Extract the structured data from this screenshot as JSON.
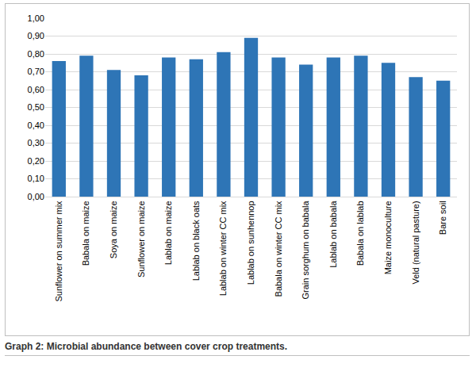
{
  "chart_data": {
    "type": "bar",
    "title": "Graph 2: Microbial abundance between cover crop treatments.",
    "categories": [
      "Sunflower on summer mix",
      "Babala on maize",
      "Soya on maize",
      "Sunflower on maize",
      "Lablab on maize",
      "Lablab on black oats",
      "Lablab on winter CC mix",
      "Lablab on sunhennop",
      "Babala on winter CC mix",
      "Grain sorghum on babala",
      "Lablab on babala",
      "Babala on lablab",
      "Maize monoculture",
      "Veld (natural pasture)",
      "Bare soil"
    ],
    "values": [
      0.76,
      0.79,
      0.71,
      0.68,
      0.78,
      0.77,
      0.81,
      0.89,
      0.78,
      0.74,
      0.78,
      0.79,
      0.75,
      0.67,
      0.65
    ],
    "color": "#2e75b6",
    "ylim": [
      0,
      1
    ],
    "yticks": [
      {
        "value": 0,
        "label": "0,00"
      },
      {
        "value": 0.1,
        "label": "0,10"
      },
      {
        "value": 0.2,
        "label": "0,20"
      },
      {
        "value": 0.3,
        "label": "0,30"
      },
      {
        "value": 0.4,
        "label": "0,40"
      },
      {
        "value": 0.5,
        "label": "0,50"
      },
      {
        "value": 0.6,
        "label": "0,60"
      },
      {
        "value": 0.7,
        "label": "0,70"
      },
      {
        "value": 0.8,
        "label": "0,80"
      },
      {
        "value": 0.9,
        "label": "0,90"
      },
      {
        "value": 1,
        "label": "1,00"
      }
    ],
    "grid": true
  }
}
